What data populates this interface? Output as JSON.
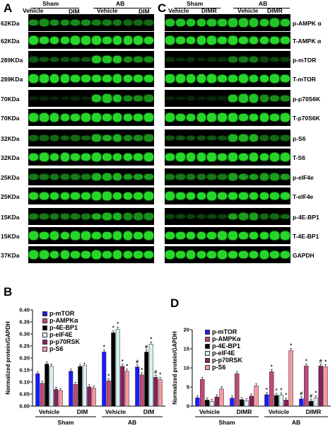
{
  "panel_a": {
    "letter": "A",
    "groups": {
      "sham": "Sham",
      "ab": "AB",
      "vehicle1": "Vehicle",
      "dim": "DIM",
      "vehicle2": "Vehicle",
      "dim2": "DIM"
    },
    "kda_labels": [
      "62KDa",
      "62KDa",
      "289KDa",
      "289KDa",
      "70KDa",
      "70KDa",
      "32KDa",
      "32KDa",
      "25KDa",
      "25KDa",
      "15KDa",
      "15KDa",
      "37KDa"
    ]
  },
  "panel_c": {
    "letter": "C",
    "groups": {
      "sham": "Sham",
      "ab": "AB",
      "vehicle1": "Vehicle",
      "dimr": "DIMR",
      "vehicle2": "Vehicle",
      "dimr2": "DIMR"
    },
    "protein_labels": [
      "p-AMPK α",
      "T-AMPK α",
      "p-mTOR",
      "T-mTOR",
      "p-p70S6K",
      "T-p70S6K",
      "p-S6",
      "T-S6",
      "p-eIF4e",
      "T-eIF4e",
      "p-4E-BP1",
      "T-4E-BP1",
      "GAPDH"
    ]
  },
  "chart_data": [
    {
      "panel": "B",
      "type": "bar",
      "ylabel": "Normalized protein/GAPDH",
      "ylim": [
        0,
        0.4
      ],
      "yticks": [
        "0.00",
        "0.05",
        "0.10",
        "0.15",
        "0.20",
        "0.25",
        "0.30",
        "0.35",
        "0.40"
      ],
      "categories": [
        "Vehicle",
        "DIM",
        "Vehicle",
        "DIM"
      ],
      "group_labels": [
        "Sham",
        "AB"
      ],
      "series": [
        {
          "name": "p-mTOR",
          "color": "#1a1aff",
          "values": [
            0.135,
            0.145,
            0.225,
            0.163
          ]
        },
        {
          "name": "p-AMPKα",
          "color": "#c04a7a",
          "values": [
            0.095,
            0.09,
            0.105,
            0.13
          ]
        },
        {
          "name": "p-4E-BP1",
          "color": "#000000",
          "values": [
            0.175,
            0.165,
            0.305,
            0.225
          ]
        },
        {
          "name": "p-eIF4E",
          "color": "#d6f3f5",
          "values": [
            0.165,
            0.17,
            0.32,
            0.258
          ]
        },
        {
          "name": "p-p70RSK",
          "color": "#8a1f5e",
          "values": [
            0.07,
            0.08,
            0.165,
            0.12
          ]
        },
        {
          "name": "p-S6",
          "color": "#f59aa0",
          "values": [
            0.065,
            0.075,
            0.145,
            0.11
          ]
        }
      ],
      "markers": {
        "star": "*",
        "hash": "#"
      }
    },
    {
      "panel": "D",
      "type": "bar",
      "ylabel": "Normalized protein/GAPDH",
      "ylim": [
        0,
        20
      ],
      "yticks": [
        "0",
        "5",
        "10",
        "15",
        "20"
      ],
      "categories": [
        "Vehicle",
        "DIMR",
        "Vehicle",
        "DIMR"
      ],
      "group_labels": [
        "Sham",
        "AB"
      ],
      "series": [
        {
          "name": "p-mTOR",
          "color": "#1a1aff",
          "values": [
            2.2,
            2.1,
            3.0,
            1.9
          ]
        },
        {
          "name": "p-AMPKα",
          "color": "#c04a7a",
          "values": [
            7.0,
            8.5,
            9.0,
            10.5
          ]
        },
        {
          "name": "p-4E-BP1",
          "color": "#000000",
          "values": [
            1.6,
            1.7,
            2.8,
            1.3
          ]
        },
        {
          "name": "p-eIF4E",
          "color": "#d6f3f5",
          "values": [
            1.2,
            1.4,
            2.9,
            2.1
          ]
        },
        {
          "name": "p-p70RSK",
          "color": "#8a1f5e",
          "values": [
            2.4,
            2.6,
            1.6,
            10.5
          ]
        },
        {
          "name": "p-S6",
          "color": "#f59aa0",
          "values": [
            4.5,
            5.3,
            14.5,
            10.3
          ]
        }
      ],
      "markers": {
        "star": "*",
        "hash": "#"
      }
    }
  ],
  "panel_b_letter": "B",
  "panel_d_letter": "D"
}
